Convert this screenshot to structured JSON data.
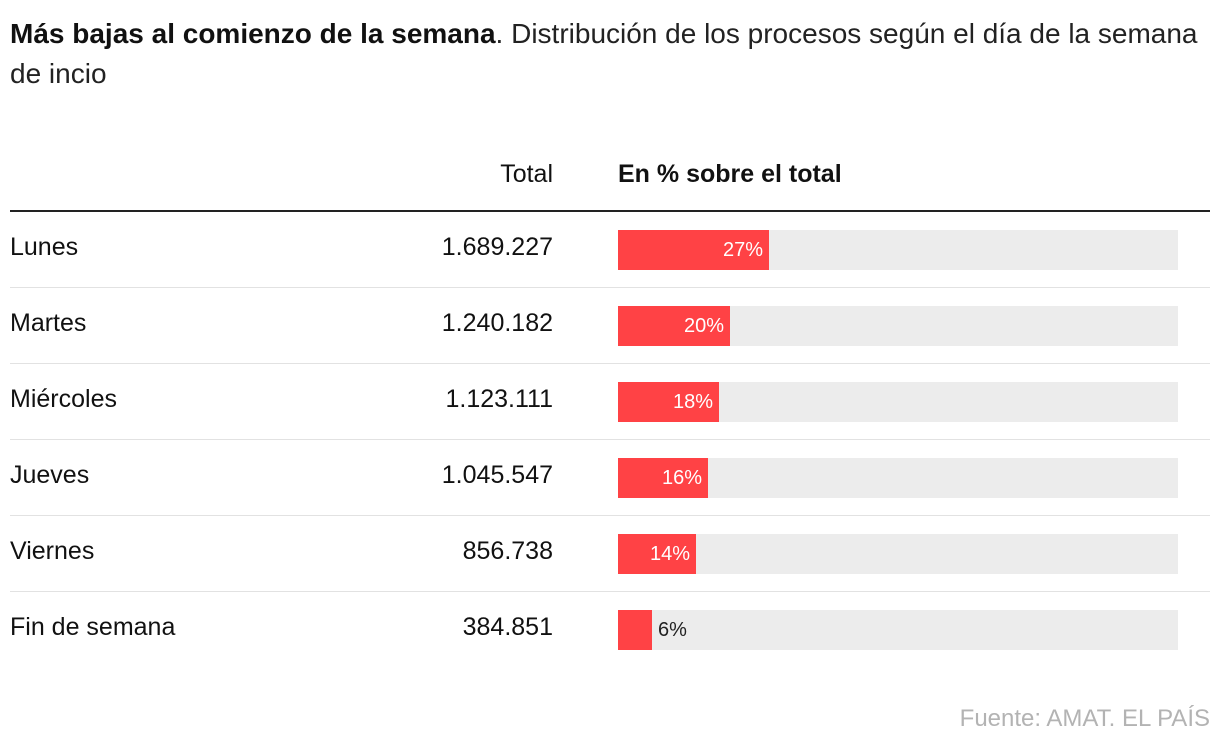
{
  "headline": {
    "bold": "Más bajas al comienzo de la semana",
    "rest": ". Distribución de los procesos según el día de la semana de incio"
  },
  "columns": {
    "total": "Total",
    "percent": "En % sobre el total"
  },
  "source": "Fuente: AMAT. EL PAÍS",
  "colors": {
    "bar": "#ff4245",
    "track": "#ececec",
    "text": "#111111",
    "source": "#b3b3b3"
  },
  "chart_data": {
    "type": "bar",
    "orientation": "horizontal",
    "categories": [
      "Lunes",
      "Martes",
      "Miércoles",
      "Jueves",
      "Viernes",
      "Fin de semana"
    ],
    "totals": [
      "1.689.227",
      "1.240.182",
      "1.123.111",
      "1.045.547",
      "856.738",
      "384.851"
    ],
    "values": [
      27,
      20,
      18,
      16,
      14,
      6
    ],
    "value_labels": [
      "27%",
      "20%",
      "18%",
      "16%",
      "14%",
      "6%"
    ],
    "xlim": [
      0,
      100
    ],
    "grid": false,
    "legend": "none"
  }
}
